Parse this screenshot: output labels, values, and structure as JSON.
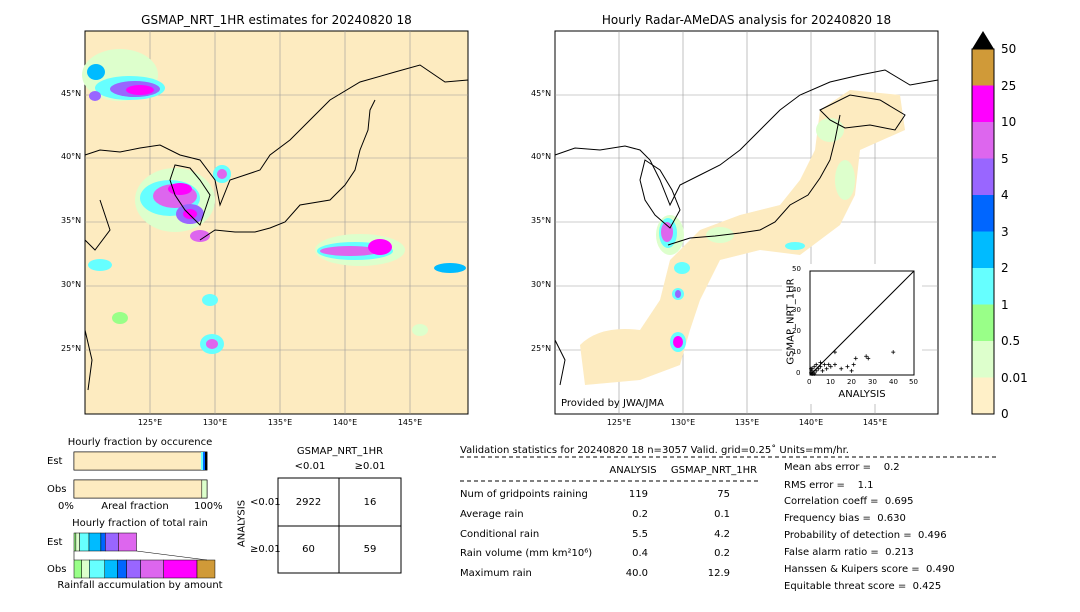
{
  "left_map": {
    "title": "GSMAP_NRT_1HR estimates for 20240820 18",
    "lat_labels": [
      "45°N",
      "40°N",
      "35°N",
      "30°N",
      "25°N"
    ],
    "lon_labels": [
      "125°E",
      "130°E",
      "135°E",
      "140°E",
      "145°E"
    ]
  },
  "right_map": {
    "title": "Hourly Radar-AMeDAS analysis for 20240820 18",
    "lat_labels": [
      "45°N",
      "40°N",
      "35°N",
      "30°N",
      "25°N"
    ],
    "lon_labels": [
      "125°E",
      "130°E",
      "135°E",
      "140°E",
      "145°E"
    ],
    "credit": "Provided by JWA/JMA"
  },
  "colorbar": {
    "labels": [
      "50",
      "25",
      "10",
      "5",
      "4",
      "3",
      "2",
      "1",
      "0.5",
      "0.01",
      "0"
    ],
    "colors": [
      "#d09a38",
      "#ff00ff",
      "#dd66ee",
      "#9966ff",
      "#0066ff",
      "#00bbff",
      "#66ffff",
      "#99ff88",
      "#ddffcc",
      "#fff0c8"
    ],
    "extend_color": "#000000"
  },
  "scatter": {
    "xlabel": "ANALYSIS",
    "ylabel": "GSMAP_NRT_1HR",
    "ticks": [
      "0",
      "10",
      "20",
      "30",
      "40",
      "50"
    ]
  },
  "fraction_occurrence": {
    "title": "Hourly fraction by occurence",
    "rows": [
      "Est",
      "Obs"
    ],
    "axis": [
      "0%",
      "Areal fraction",
      "100%"
    ]
  },
  "fraction_total": {
    "title": "Hourly fraction of total rain",
    "rows": [
      "Est",
      "Obs"
    ],
    "footer": "Rainfall accumulation by amount"
  },
  "contingency": {
    "title": "GSMAP_NRT_1HR",
    "col_headers": [
      "<0.01",
      "≥0.01"
    ],
    "row_label": "ANALYSIS",
    "row_headers": [
      "<0.01",
      "≥0.01"
    ],
    "cells": [
      "2922",
      "16",
      "60",
      "59"
    ]
  },
  "validation": {
    "header": "Validation statistics for 20240820 18  n=3057 Valid. grid=0.25˚ Units=mm/hr.",
    "col_analysis": "ANALYSIS",
    "col_gsmap": "GSMAP_NRT_1HR",
    "rows": [
      {
        "label": "Num of gridpoints raining",
        "analysis": "119",
        "gsmap": "75"
      },
      {
        "label": "Average rain",
        "analysis": "0.2",
        "gsmap": "0.1"
      },
      {
        "label": "Conditional rain",
        "analysis": "5.5",
        "gsmap": "4.2"
      },
      {
        "label": "Rain volume (mm km²10⁶)",
        "analysis": "0.4",
        "gsmap": "0.2"
      },
      {
        "label": "Maximum rain",
        "analysis": "40.0",
        "gsmap": "12.9"
      }
    ],
    "scores": [
      "Mean abs error =    0.2",
      "RMS error =    1.1",
      "Correlation coeff =  0.695",
      "Frequency bias =  0.630",
      "Probability of detection =  0.496",
      "False alarm ratio =  0.213",
      "Hanssen & Kuipers score =  0.490",
      "Equitable threat score =  0.425"
    ]
  },
  "chart_data": [
    {
      "type": "scatter",
      "title": "",
      "xlabel": "ANALYSIS",
      "ylabel": "GSMAP_NRT_1HR",
      "xlim": [
        0,
        50
      ],
      "ylim": [
        0,
        50
      ],
      "points": [
        [
          0.5,
          1
        ],
        [
          1,
          2
        ],
        [
          1,
          3
        ],
        [
          2,
          1
        ],
        [
          2,
          4
        ],
        [
          3,
          2
        ],
        [
          3,
          5
        ],
        [
          4,
          3
        ],
        [
          5,
          4
        ],
        [
          5,
          6
        ],
        [
          6,
          2
        ],
        [
          7,
          5
        ],
        [
          8,
          3
        ],
        [
          9,
          5
        ],
        [
          10,
          4
        ],
        [
          12,
          5
        ],
        [
          12,
          11
        ],
        [
          15,
          3
        ],
        [
          18,
          4
        ],
        [
          20,
          2
        ],
        [
          21,
          5
        ],
        [
          22,
          8
        ],
        [
          27,
          9
        ],
        [
          28,
          8
        ],
        [
          40,
          11
        ],
        [
          1,
          0.5
        ],
        [
          0.5,
          3
        ],
        [
          2,
          0.5
        ]
      ]
    },
    {
      "type": "bar",
      "title": "Hourly fraction by occurence",
      "categories": [
        "Est",
        "Obs"
      ],
      "series": [
        {
          "values": [
            0.975,
            0.961
          ]
        },
        {
          "values": [
            0.025,
            0.039
          ]
        }
      ]
    },
    {
      "type": "bar",
      "title": "Hourly fraction of total rain",
      "categories": [
        "Est",
        "Obs"
      ],
      "series": [
        {
          "values": [
            0.03,
            0.06
          ]
        },
        {
          "values": [
            0.06,
            0.06
          ]
        },
        {
          "values": [
            0.15,
            0.12
          ]
        },
        {
          "values": [
            0.19,
            0.1
          ]
        },
        {
          "values": [
            0.07,
            0.07
          ]
        },
        {
          "values": [
            0.21,
            0.11
          ]
        },
        {
          "values": [
            0.29,
            0.18
          ]
        },
        {
          "values": [
            0.0,
            0.26
          ]
        },
        {
          "values": [
            0.0,
            0.14
          ]
        }
      ]
    }
  ]
}
